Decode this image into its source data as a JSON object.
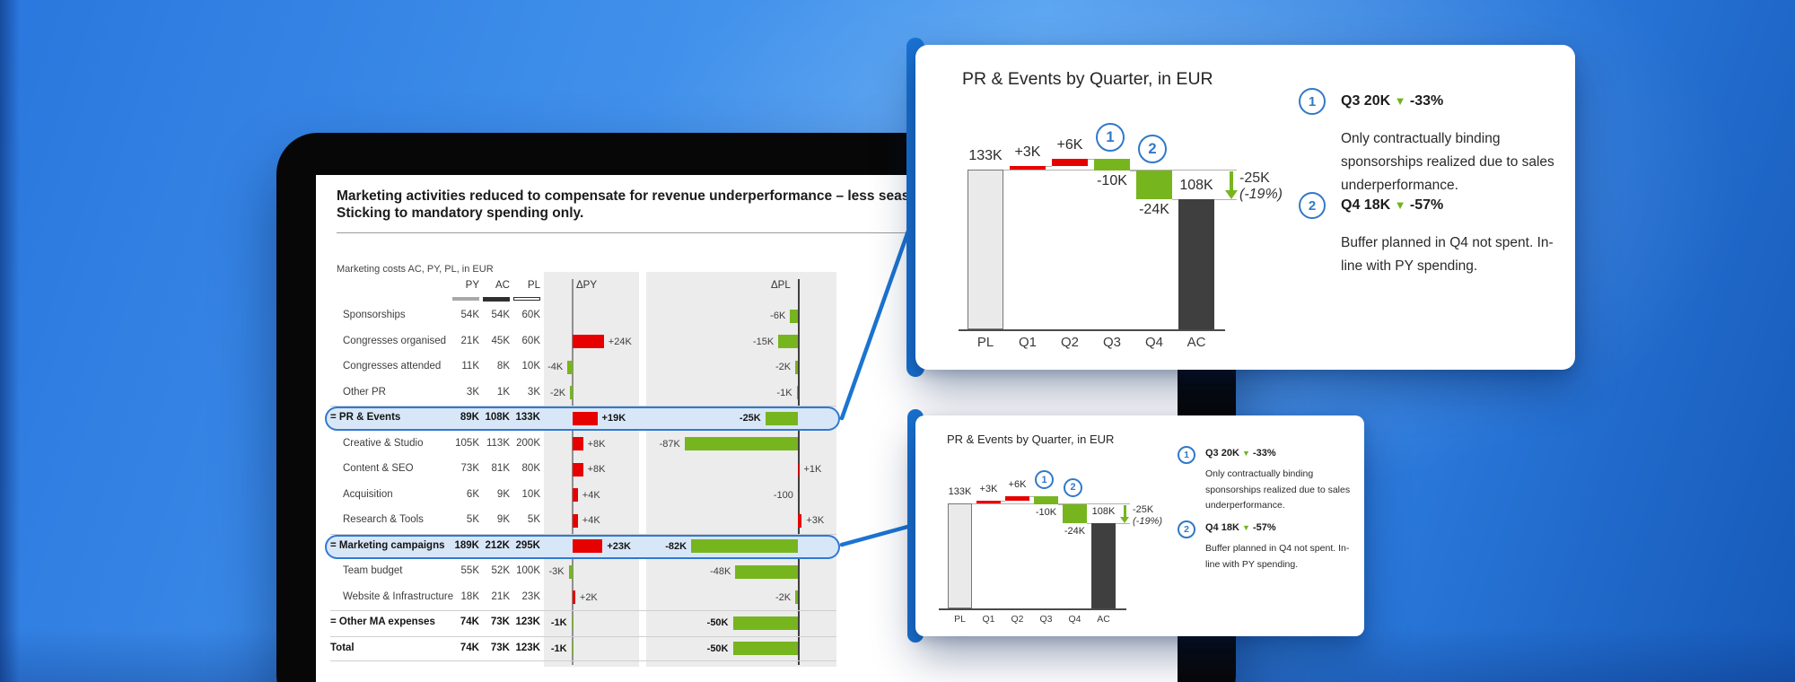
{
  "colors": {
    "accent_blue": "#1b74d0",
    "red": "#e60000",
    "green": "#77b51f",
    "dark_bar": "#3f3f3f",
    "pl_bar": "#eaeaea",
    "highlight_fill": "#d8e7f8",
    "circle_blue": "#3079c8"
  },
  "screen": {
    "title_line1": "Marketing activities reduced to compensate for revenue underperformance – less seasonal ca",
    "title_line2": "Sticking to mandatory spending only."
  },
  "callout": {
    "title": "PR & Events by Quarter, in EUR",
    "annotations": [
      {
        "num": "1",
        "headline": "Q3 20K",
        "pct": "-33%",
        "body": "Only contractually binding sponsorships realized due to sales underperformance."
      },
      {
        "num": "2",
        "headline": "Q4 18K",
        "pct": "-57%",
        "body": "Buffer planned in Q4 not spent. In-line with PY spending."
      }
    ]
  },
  "chart_data": [
    {
      "type": "bar",
      "subtype": "waterfall",
      "title": "PR & Events by Quarter, in EUR",
      "categories": [
        "PL",
        "Q1",
        "Q2",
        "Q3",
        "Q4",
        "AC"
      ],
      "values": [
        133,
        3,
        6,
        -10,
        -24,
        108
      ],
      "kinds": [
        "base",
        "delta",
        "delta",
        "delta",
        "delta",
        "total"
      ],
      "labels": [
        "133K",
        "+3K",
        "+6K",
        "-10K",
        "-24K",
        "108K"
      ],
      "markers": [
        {
          "num": "1",
          "category_index": 3
        },
        {
          "num": "2",
          "category_index": 4
        }
      ],
      "total_delta": {
        "label": "-25K",
        "pct": "(-19%)"
      },
      "ylim": [
        0,
        145
      ],
      "unit": "EUR thousands",
      "legend": "none",
      "grid": "off"
    },
    {
      "type": "table",
      "title": "Marketing costs AC, PY, PL, in EUR",
      "columns": [
        "PY",
        "AC",
        "PL",
        "ΔPY",
        "ΔPL"
      ],
      "rows": [
        {
          "label": "Sponsorships",
          "py": "54K",
          "ac": "54K",
          "pl": "60K",
          "dpy": 0,
          "dpy_label": "",
          "dpl": -6,
          "dpl_label": "-6K",
          "total": false,
          "highlight": false,
          "sep_top": false
        },
        {
          "label": "Congresses organised",
          "py": "21K",
          "ac": "45K",
          "pl": "60K",
          "dpy": 24,
          "dpy_label": "+24K",
          "dpl": -15,
          "dpl_label": "-15K",
          "total": false,
          "highlight": false,
          "sep_top": false
        },
        {
          "label": "Congresses attended",
          "py": "11K",
          "ac": "8K",
          "pl": "10K",
          "dpy": -4,
          "dpy_label": "-4K",
          "dpl": -2,
          "dpl_label": "-2K",
          "total": false,
          "highlight": false,
          "sep_top": false
        },
        {
          "label": "Other PR",
          "py": "3K",
          "ac": "1K",
          "pl": "3K",
          "dpy": -2,
          "dpy_label": "-2K",
          "dpl": -1,
          "dpl_label": "-1K",
          "total": false,
          "highlight": false,
          "sep_top": false
        },
        {
          "label": "= PR & Events",
          "py": "89K",
          "ac": "108K",
          "pl": "133K",
          "dpy": 19,
          "dpy_label": "+19K",
          "dpl": -25,
          "dpl_label": "-25K",
          "total": true,
          "highlight": true,
          "sep_top": true
        },
        {
          "label": "Creative & Studio",
          "py": "105K",
          "ac": "113K",
          "pl": "200K",
          "dpy": 8,
          "dpy_label": "+8K",
          "dpl": -87,
          "dpl_label": "-87K",
          "total": false,
          "highlight": false,
          "sep_top": false
        },
        {
          "label": "Content & SEO",
          "py": "73K",
          "ac": "81K",
          "pl": "80K",
          "dpy": 8,
          "dpy_label": "+8K",
          "dpl": 1,
          "dpl_label": "+1K",
          "total": false,
          "highlight": false,
          "sep_top": false
        },
        {
          "label": "Acquisition",
          "py": "6K",
          "ac": "9K",
          "pl": "10K",
          "dpy": 4,
          "dpy_label": "+4K",
          "dpl": -0.1,
          "dpl_label": "-100",
          "total": false,
          "highlight": false,
          "sep_top": false
        },
        {
          "label": "Research & Tools",
          "py": "5K",
          "ac": "9K",
          "pl": "5K",
          "dpy": 4,
          "dpy_label": "+4K",
          "dpl": 3,
          "dpl_label": "+3K",
          "total": false,
          "highlight": false,
          "sep_top": false
        },
        {
          "label": "= Marketing campaigns",
          "py": "189K",
          "ac": "212K",
          "pl": "295K",
          "dpy": 23,
          "dpy_label": "+23K",
          "dpl": -82,
          "dpl_label": "-82K",
          "total": true,
          "highlight": true,
          "sep_top": true
        },
        {
          "label": "Team budget",
          "py": "55K",
          "ac": "52K",
          "pl": "100K",
          "dpy": -3,
          "dpy_label": "-3K",
          "dpl": -48,
          "dpl_label": "-48K",
          "total": false,
          "highlight": false,
          "sep_top": false
        },
        {
          "label": "Website & Infrastructure",
          "py": "18K",
          "ac": "21K",
          "pl": "23K",
          "dpy": 2,
          "dpy_label": "+2K",
          "dpl": -2,
          "dpl_label": "-2K",
          "total": false,
          "highlight": false,
          "sep_top": false
        },
        {
          "label": "= Other MA expenses",
          "py": "74K",
          "ac": "73K",
          "pl": "123K",
          "dpy": -1,
          "dpy_label": "-1K",
          "dpl": -50,
          "dpl_label": "-50K",
          "total": true,
          "highlight": false,
          "sep_top": true
        },
        {
          "label": "Total",
          "py": "74K",
          "ac": "73K",
          "pl": "123K",
          "dpy": -1,
          "dpy_label": "-1K",
          "dpl": -50,
          "dpl_label": "-50K",
          "total": true,
          "highlight": false,
          "sep_top": true,
          "sep_bottom": true
        }
      ]
    }
  ]
}
